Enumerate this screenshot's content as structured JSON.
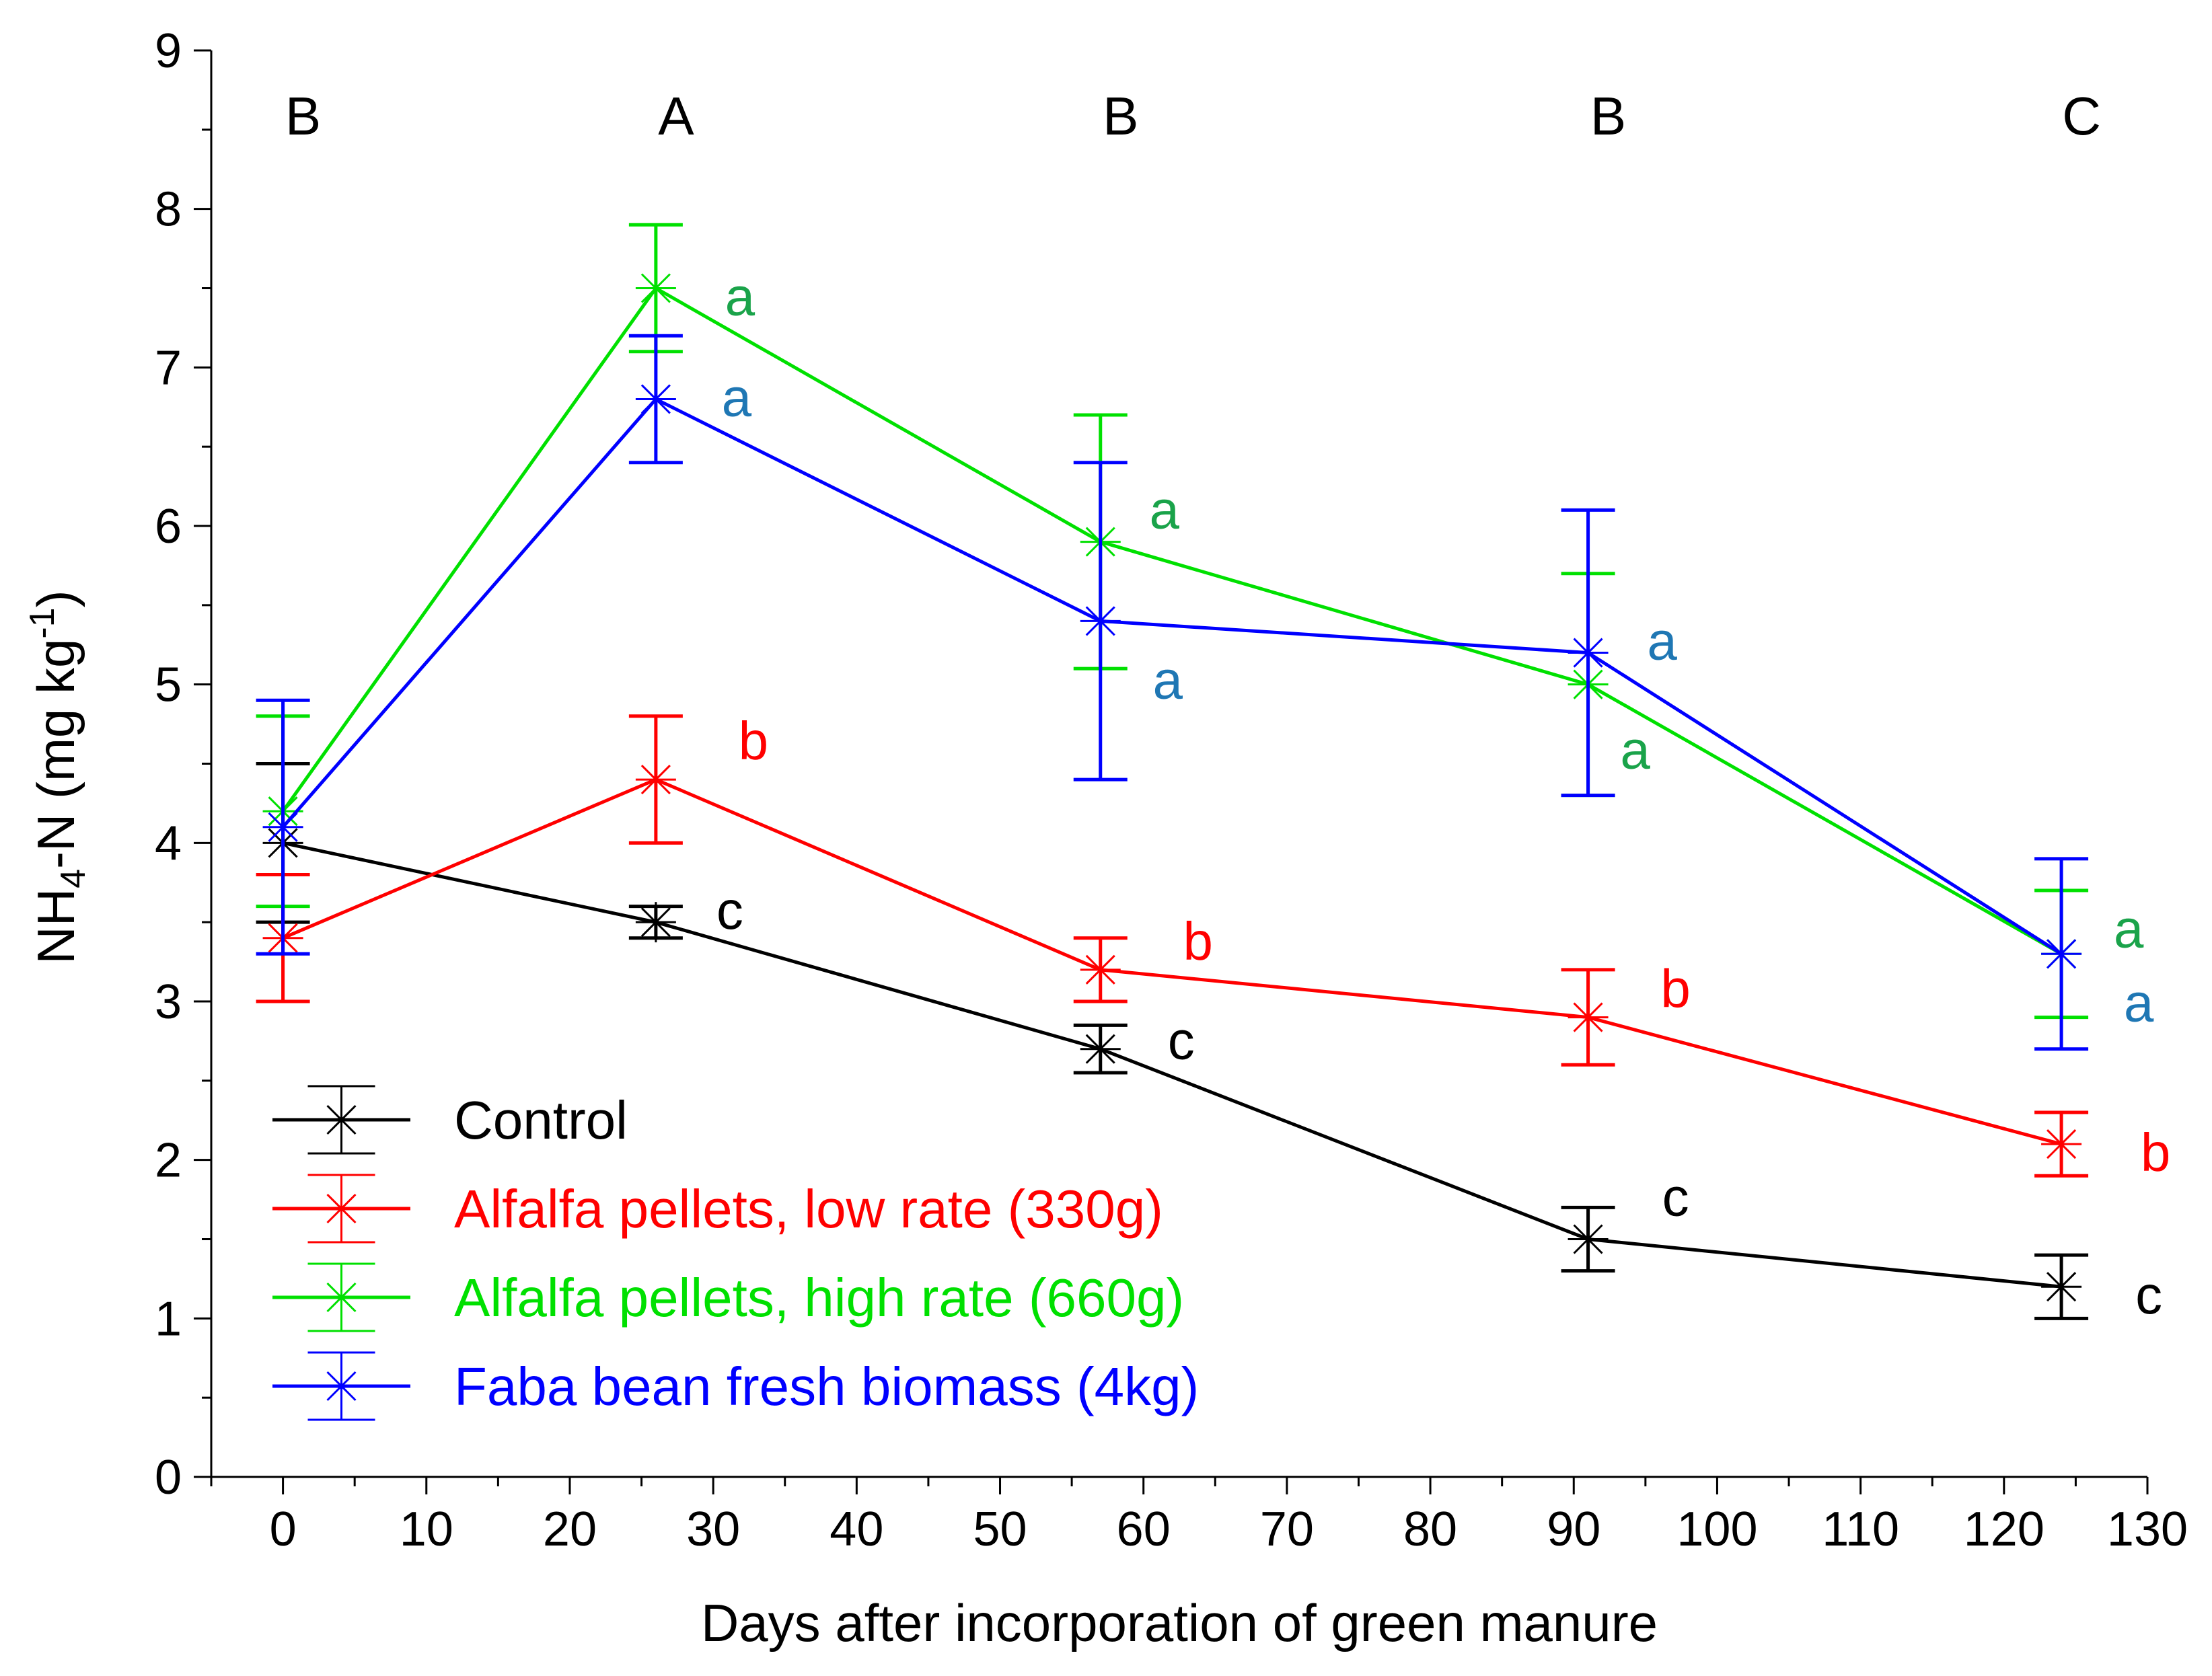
{
  "chart_data": {
    "type": "line",
    "xlabel": "Days after incorporation of green manure",
    "ylabel": "NH4-N (mg kg-1)",
    "ylabel_parts": {
      "main": "NH",
      "sub": "4",
      "mid": "-N (mg kg",
      "sup": "-1",
      "end": ")"
    },
    "xlim": [
      -5,
      130
    ],
    "ylim": [
      0,
      9
    ],
    "x_ticks": [
      0,
      10,
      20,
      30,
      40,
      50,
      60,
      70,
      80,
      90,
      100,
      110,
      120,
      130
    ],
    "x_tick_labels": [
      "0",
      "10",
      "20",
      "30",
      "40",
      "50",
      "60",
      "70",
      "80",
      "90",
      "100",
      "110",
      "120",
      "130"
    ],
    "y_ticks": [
      0,
      1,
      2,
      3,
      4,
      5,
      6,
      7,
      8,
      9
    ],
    "y_tick_labels": [
      "0",
      "1",
      "2",
      "3",
      "4",
      "5",
      "6",
      "7",
      "8",
      "9"
    ],
    "grid": false,
    "legend_position": "bottom-left",
    "series": [
      {
        "name": "Control",
        "color": "#000000",
        "x": [
          0,
          26,
          57,
          91,
          124
        ],
        "y": [
          4.0,
          3.5,
          2.7,
          1.5,
          1.2
        ],
        "err": [
          0.5,
          0.1,
          0.15,
          0.2,
          0.2
        ],
        "letters": [
          "",
          "c",
          "c",
          "c",
          "c"
        ],
        "letter_color": "#000000"
      },
      {
        "name": "Alfalfa pellets, low rate (330g)",
        "color": "#ff0000",
        "x": [
          0,
          26,
          57,
          91,
          124
        ],
        "y": [
          3.4,
          4.4,
          3.2,
          2.9,
          2.1
        ],
        "err": [
          0.4,
          0.4,
          0.2,
          0.3,
          0.2
        ],
        "letters": [
          "",
          "b",
          "b",
          "b",
          "b"
        ],
        "letter_color": "#ff0000"
      },
      {
        "name": "Alfalfa pellets, high rate (660g)",
        "color": "#00e000",
        "x": [
          0,
          26,
          57,
          91,
          124
        ],
        "y": [
          4.2,
          7.5,
          5.9,
          5.0,
          3.3
        ],
        "err": [
          0.6,
          0.4,
          0.8,
          0.7,
          0.4
        ],
        "letters": [
          "",
          "a",
          "a",
          "a",
          "a"
        ],
        "letter_color": "#1aa34a"
      },
      {
        "name": "Faba bean fresh biomass (4kg)",
        "color": "#0000ff",
        "x": [
          0,
          26,
          57,
          91,
          124
        ],
        "y": [
          4.1,
          6.8,
          5.4,
          5.2,
          3.3
        ],
        "err": [
          0.8,
          0.4,
          1.0,
          0.9,
          0.6
        ],
        "letters": [
          "",
          "a",
          "a",
          "a",
          "a"
        ],
        "letter_color": "#1f77b4"
      }
    ],
    "time_letters": [
      {
        "x": 0,
        "label": "B"
      },
      {
        "x": 26,
        "label": "A"
      },
      {
        "x": 57,
        "label": "B"
      },
      {
        "x": 91,
        "label": "B"
      },
      {
        "x": 124,
        "label": "C"
      }
    ]
  }
}
